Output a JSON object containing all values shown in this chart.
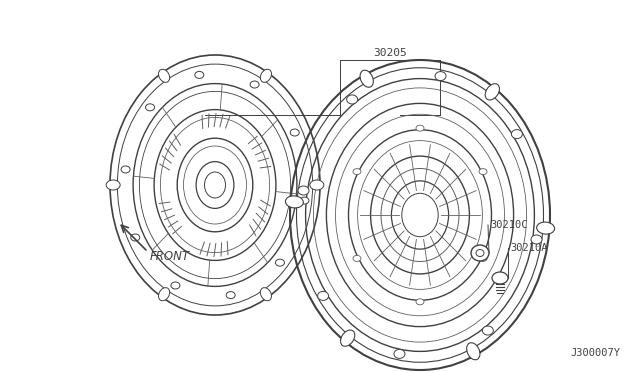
{
  "bg_color": "#ffffff",
  "line_color": "#404040",
  "mid_line_color": "#606060",
  "light_line_color": "#909090",
  "title_label": "J300007Y",
  "part_30205": "30205",
  "part_30210C": "30210C",
  "part_30210A": "30210A",
  "front_label": "FRONT",
  "figw": 6.4,
  "figh": 3.72,
  "dpi": 100
}
